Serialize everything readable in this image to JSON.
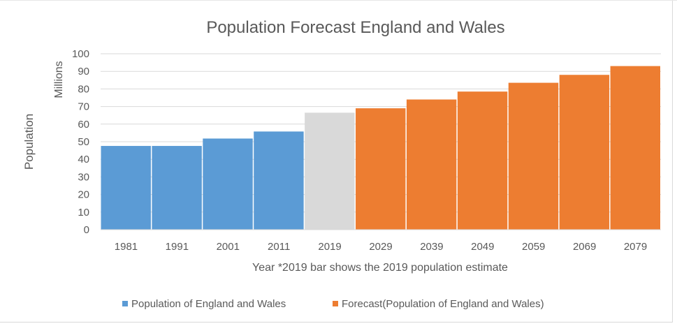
{
  "chart_data": {
    "type": "bar",
    "title": "Population Forecast England and Wales",
    "ylabel_outer": "Population",
    "ylabel_unit": "Millions",
    "xlabel": "Year *2019 bar shows the 2019 population estimate",
    "ylim": [
      0,
      100
    ],
    "yticks": [
      "0",
      "10",
      "20",
      "30",
      "40",
      "50",
      "60",
      "70",
      "80",
      "90",
      "100"
    ],
    "categories": [
      "1981",
      "1991",
      "2001",
      "2011",
      "2019",
      "2029",
      "2039",
      "2049",
      "2059",
      "2069",
      "2079"
    ],
    "values": [
      47.6,
      47.6,
      51.8,
      55.8,
      66.5,
      69.0,
      74.0,
      78.5,
      83.5,
      88.0,
      93.0
    ],
    "bar_colors": [
      "#5b9bd5",
      "#5b9bd5",
      "#5b9bd5",
      "#5b9bd5",
      "#d9d9d9",
      "#ed7d31",
      "#ed7d31",
      "#ed7d31",
      "#ed7d31",
      "#ed7d31",
      "#ed7d31"
    ],
    "grid": true,
    "legend_position": "bottom",
    "legend": [
      {
        "label": "Population of England and Wales",
        "color": "#5b9bd5"
      },
      {
        "label": "Forecast(Population of England and Wales)",
        "color": "#ed7d31"
      }
    ]
  }
}
